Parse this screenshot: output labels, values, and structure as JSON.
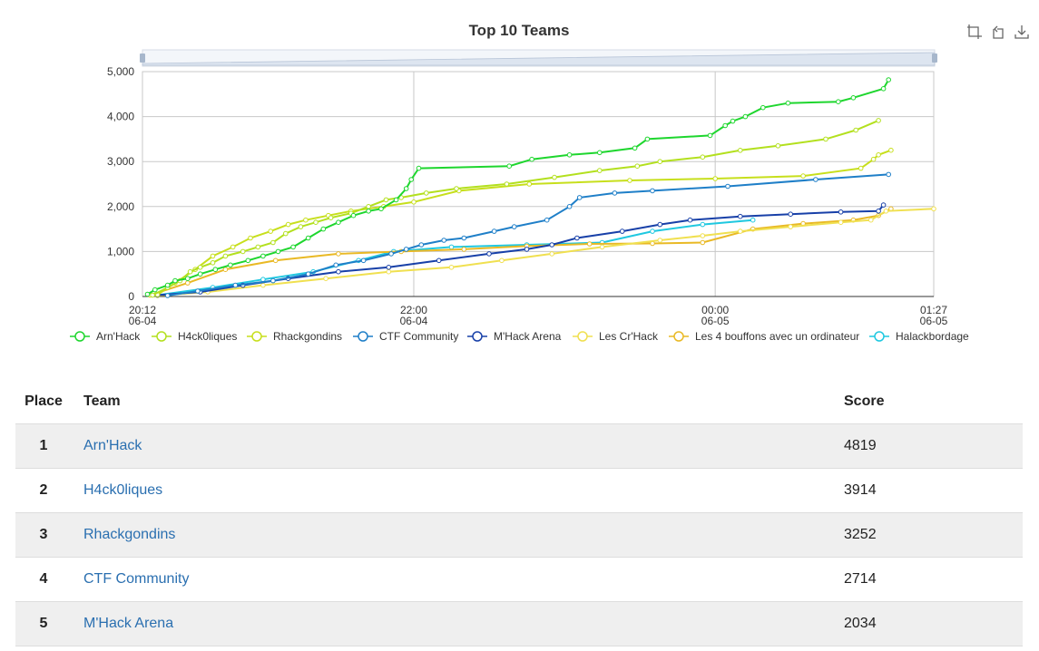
{
  "chart": {
    "title": "Top 10 Teams",
    "toolbox": [
      {
        "name": "zoom-icon"
      },
      {
        "name": "zoom-reset-icon"
      },
      {
        "name": "download-icon"
      }
    ],
    "chart_data": {
      "type": "line",
      "title": "Top 10 Teams",
      "x_unit": "time (MM-DD HH:MM)",
      "xlim": [
        "06-04 20:12",
        "06-05 01:27"
      ],
      "ylim": [
        0,
        5000
      ],
      "y_ticks": [
        0,
        1000,
        2000,
        3000,
        4000,
        5000
      ],
      "y_tick_labels": [
        "0",
        "1,000",
        "2,000",
        "3,000",
        "4,000",
        "5,000"
      ],
      "x_ticks": [
        {
          "time": "06-04 20:12",
          "label1": "20:12",
          "label2": "06-04"
        },
        {
          "time": "06-04 22:00",
          "label1": "22:00",
          "label2": "06-04"
        },
        {
          "time": "06-05 00:00",
          "label1": "00:00",
          "label2": "06-05"
        },
        {
          "time": "06-05 01:27",
          "label1": "01:27",
          "label2": "06-05"
        }
      ],
      "grid": true,
      "legend_position": "bottom",
      "data_zoom_slider": true,
      "series": [
        {
          "name": "Arn'Hack",
          "color": "#1ed62e",
          "points": [
            [
              "06-04 20:14",
              50
            ],
            [
              "06-04 20:17",
              150
            ],
            [
              "06-04 20:22",
              250
            ],
            [
              "06-04 20:25",
              350
            ],
            [
              "06-04 20:30",
              400
            ],
            [
              "06-04 20:35",
              500
            ],
            [
              "06-04 20:41",
              600
            ],
            [
              "06-04 20:47",
              700
            ],
            [
              "06-04 20:54",
              800
            ],
            [
              "06-04 21:00",
              900
            ],
            [
              "06-04 21:06",
              1000
            ],
            [
              "06-04 21:12",
              1100
            ],
            [
              "06-04 21:18",
              1300
            ],
            [
              "06-04 21:24",
              1500
            ],
            [
              "06-04 21:30",
              1650
            ],
            [
              "06-04 21:36",
              1800
            ],
            [
              "06-04 21:42",
              1900
            ],
            [
              "06-04 21:47",
              1950
            ],
            [
              "06-04 21:53",
              2150
            ],
            [
              "06-04 21:57",
              2400
            ],
            [
              "06-04 21:59",
              2600
            ],
            [
              "06-04 22:02",
              2850
            ],
            [
              "06-04 22:38",
              2900
            ],
            [
              "06-04 22:47",
              3050
            ],
            [
              "06-04 23:02",
              3150
            ],
            [
              "06-04 23:14",
              3200
            ],
            [
              "06-04 23:28",
              3300
            ],
            [
              "06-04 23:33",
              3500
            ],
            [
              "06-04 23:58",
              3580
            ],
            [
              "06-05 00:04",
              3800
            ],
            [
              "06-05 00:07",
              3900
            ],
            [
              "06-05 00:12",
              4000
            ],
            [
              "06-05 00:19",
              4200
            ],
            [
              "06-05 00:29",
              4300
            ],
            [
              "06-05 00:49",
              4330
            ],
            [
              "06-05 00:55",
              4420
            ],
            [
              "06-05 01:07",
              4620
            ],
            [
              "06-05 01:09",
              4819
            ]
          ]
        },
        {
          "name": "H4ck0liques",
          "color": "#b3e01e",
          "points": [
            [
              "06-04 20:16",
              30
            ],
            [
              "06-04 20:22",
              200
            ],
            [
              "06-04 20:27",
              350
            ],
            [
              "06-04 20:31",
              550
            ],
            [
              "06-04 20:35",
              650
            ],
            [
              "06-04 20:40",
              750
            ],
            [
              "06-04 20:45",
              900
            ],
            [
              "06-04 20:52",
              1000
            ],
            [
              "06-04 20:58",
              1100
            ],
            [
              "06-04 21:04",
              1200
            ],
            [
              "06-04 21:09",
              1400
            ],
            [
              "06-04 21:15",
              1550
            ],
            [
              "06-04 21:21",
              1650
            ],
            [
              "06-04 21:27",
              1750
            ],
            [
              "06-04 21:35",
              1850
            ],
            [
              "06-04 21:42",
              2000
            ],
            [
              "06-04 21:49",
              2150
            ],
            [
              "06-04 21:55",
              2200
            ],
            [
              "06-04 22:05",
              2300
            ],
            [
              "06-04 22:17",
              2400
            ],
            [
              "06-04 22:37",
              2500
            ],
            [
              "06-04 22:56",
              2650
            ],
            [
              "06-04 23:14",
              2800
            ],
            [
              "06-04 23:29",
              2900
            ],
            [
              "06-04 23:38",
              3000
            ],
            [
              "06-04 23:55",
              3100
            ],
            [
              "06-05 00:10",
              3250
            ],
            [
              "06-05 00:25",
              3350
            ],
            [
              "06-05 00:44",
              3500
            ],
            [
              "06-05 00:56",
              3700
            ],
            [
              "06-05 01:05",
              3914
            ]
          ]
        },
        {
          "name": "Rhackgondins",
          "color": "#c7df1c",
          "points": [
            [
              "06-04 20:18",
              40
            ],
            [
              "06-04 20:25",
              300
            ],
            [
              "06-04 20:33",
              600
            ],
            [
              "06-04 20:40",
              900
            ],
            [
              "06-04 20:48",
              1100
            ],
            [
              "06-04 20:55",
              1300
            ],
            [
              "06-04 21:03",
              1450
            ],
            [
              "06-04 21:10",
              1600
            ],
            [
              "06-04 21:17",
              1700
            ],
            [
              "06-04 21:26",
              1800
            ],
            [
              "06-04 21:35",
              1900
            ],
            [
              "06-04 21:48",
              2000
            ],
            [
              "06-04 22:00",
              2100
            ],
            [
              "06-04 22:18",
              2350
            ],
            [
              "06-04 22:46",
              2500
            ],
            [
              "06-04 23:26",
              2580
            ],
            [
              "06-05 00:00",
              2620
            ],
            [
              "06-05 00:35",
              2680
            ],
            [
              "06-05 00:58",
              2850
            ],
            [
              "06-05 01:03",
              3050
            ],
            [
              "06-05 01:05",
              3150
            ],
            [
              "06-05 01:10",
              3252
            ]
          ]
        },
        {
          "name": "CTF Community",
          "color": "#1f7fc8",
          "points": [
            [
              "06-04 20:22",
              20
            ],
            [
              "06-04 20:34",
              120
            ],
            [
              "06-04 20:49",
              250
            ],
            [
              "06-04 21:04",
              350
            ],
            [
              "06-04 21:18",
              500
            ],
            [
              "06-04 21:29",
              700
            ],
            [
              "06-04 21:40",
              800
            ],
            [
              "06-04 21:51",
              950
            ],
            [
              "06-04 21:57",
              1050
            ],
            [
              "06-04 22:03",
              1150
            ],
            [
              "06-04 22:12",
              1250
            ],
            [
              "06-04 22:20",
              1300
            ],
            [
              "06-04 22:32",
              1450
            ],
            [
              "06-04 22:40",
              1550
            ],
            [
              "06-04 22:53",
              1700
            ],
            [
              "06-04 23:02",
              2000
            ],
            [
              "06-04 23:06",
              2200
            ],
            [
              "06-04 23:20",
              2300
            ],
            [
              "06-04 23:35",
              2350
            ],
            [
              "06-05 00:05",
              2450
            ],
            [
              "06-05 00:40",
              2600
            ],
            [
              "06-05 01:09",
              2714
            ]
          ]
        },
        {
          "name": "M'Hack Arena",
          "color": "#1840a8",
          "points": [
            [
              "06-04 20:18",
              30
            ],
            [
              "06-04 20:35",
              100
            ],
            [
              "06-04 20:52",
              250
            ],
            [
              "06-04 21:10",
              400
            ],
            [
              "06-04 21:30",
              550
            ],
            [
              "06-04 21:50",
              650
            ],
            [
              "06-04 22:10",
              800
            ],
            [
              "06-04 22:30",
              950
            ],
            [
              "06-04 22:45",
              1050
            ],
            [
              "06-04 22:55",
              1150
            ],
            [
              "06-04 23:05",
              1300
            ],
            [
              "06-04 23:23",
              1450
            ],
            [
              "06-04 23:38",
              1600
            ],
            [
              "06-04 23:50",
              1700
            ],
            [
              "06-05 00:10",
              1780
            ],
            [
              "06-05 00:30",
              1830
            ],
            [
              "06-05 00:50",
              1880
            ],
            [
              "06-05 01:05",
              1900
            ],
            [
              "06-05 01:07",
              2034
            ]
          ]
        },
        {
          "name": "Les Cr'Hack",
          "color": "#f0e050",
          "points": [
            [
              "06-04 20:18",
              20
            ],
            [
              "06-04 20:38",
              100
            ],
            [
              "06-04 21:00",
              250
            ],
            [
              "06-04 21:25",
              400
            ],
            [
              "06-04 21:50",
              550
            ],
            [
              "06-04 22:15",
              650
            ],
            [
              "06-04 22:35",
              800
            ],
            [
              "06-04 22:55",
              950
            ],
            [
              "06-04 23:15",
              1100
            ],
            [
              "06-04 23:38",
              1250
            ],
            [
              "06-04 23:55",
              1350
            ],
            [
              "06-05 00:10",
              1450
            ],
            [
              "06-05 00:30",
              1550
            ],
            [
              "06-05 00:50",
              1650
            ],
            [
              "06-05 01:02",
              1700
            ],
            [
              "06-05 01:08",
              1900
            ],
            [
              "06-05 01:27",
              1950
            ]
          ]
        },
        {
          "name": "Les 4 bouffons avec un ordinateur",
          "color": "#e9b925",
          "points": [
            [
              "06-04 20:15",
              30
            ],
            [
              "06-04 20:30",
              300
            ],
            [
              "06-04 20:45",
              600
            ],
            [
              "06-04 21:05",
              800
            ],
            [
              "06-04 21:30",
              950
            ],
            [
              "06-04 21:55",
              1000
            ],
            [
              "06-04 22:20",
              1050
            ],
            [
              "06-04 22:45",
              1120
            ],
            [
              "06-04 23:10",
              1170
            ],
            [
              "06-04 23:35",
              1180
            ],
            [
              "06-04 23:55",
              1200
            ],
            [
              "06-05 00:15",
              1500
            ],
            [
              "06-05 00:35",
              1620
            ],
            [
              "06-05 00:55",
              1700
            ],
            [
              "06-05 01:05",
              1800
            ],
            [
              "06-05 01:10",
              1950
            ]
          ]
        },
        {
          "name": "Halackbordage",
          "color": "#1fc8e0",
          "points": [
            [
              "06-04 20:18",
              30
            ],
            [
              "06-04 20:40",
              200
            ],
            [
              "06-04 21:00",
              380
            ],
            [
              "06-04 21:20",
              550
            ],
            [
              "06-04 21:38",
              800
            ],
            [
              "06-04 21:52",
              1000
            ],
            [
              "06-04 22:15",
              1100
            ],
            [
              "06-04 22:45",
              1150
            ],
            [
              "06-04 23:15",
              1200
            ],
            [
              "06-04 23:35",
              1450
            ],
            [
              "06-04 23:55",
              1600
            ],
            [
              "06-05 00:15",
              1700
            ]
          ]
        }
      ]
    }
  },
  "table": {
    "headers": {
      "place": "Place",
      "team": "Team",
      "score": "Score"
    },
    "rows": [
      {
        "place": "1",
        "team": "Arn'Hack",
        "score": "4819"
      },
      {
        "place": "2",
        "team": "H4ck0liques",
        "score": "3914"
      },
      {
        "place": "3",
        "team": "Rhackgondins",
        "score": "3252"
      },
      {
        "place": "4",
        "team": "CTF Community",
        "score": "2714"
      },
      {
        "place": "5",
        "team": "M'Hack Arena",
        "score": "2034"
      }
    ]
  }
}
